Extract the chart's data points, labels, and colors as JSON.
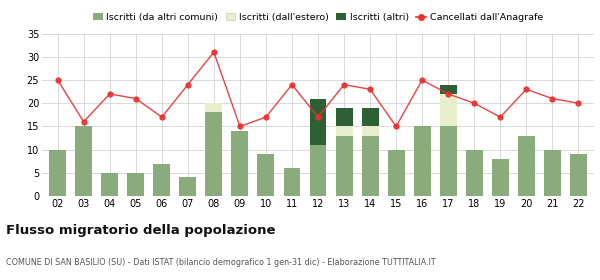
{
  "years": [
    "02",
    "03",
    "04",
    "05",
    "06",
    "07",
    "08",
    "09",
    "10",
    "11",
    "12",
    "13",
    "14",
    "15",
    "16",
    "17",
    "18",
    "19",
    "20",
    "21",
    "22"
  ],
  "iscritti_comuni": [
    10,
    15,
    5,
    5,
    7,
    4,
    18,
    14,
    9,
    6,
    11,
    13,
    13,
    10,
    15,
    15,
    10,
    8,
    13,
    10,
    9
  ],
  "iscritti_estero": [
    0,
    0,
    0,
    0,
    0,
    0,
    2,
    0,
    0,
    0,
    0,
    2,
    2,
    0,
    0,
    7,
    0,
    0,
    0,
    0,
    0
  ],
  "iscritti_altri": [
    0,
    0,
    0,
    0,
    0,
    0,
    0,
    0,
    0,
    0,
    10,
    4,
    4,
    0,
    0,
    2,
    0,
    0,
    0,
    0,
    0
  ],
  "cancellati": [
    25,
    16,
    22,
    21,
    17,
    24,
    31,
    15,
    17,
    24,
    17,
    24,
    23,
    15,
    25,
    22,
    20,
    17,
    23,
    21,
    20
  ],
  "color_comuni": "#8aab7c",
  "color_estero": "#e8eecc",
  "color_altri": "#2d6135",
  "color_cancellati": "#e83030",
  "title": "Flusso migratorio della popolazione",
  "subtitle": "COMUNE DI SAN BASILIO (SU) - Dati ISTAT (bilancio demografico 1 gen-31 dic) - Elaborazione TUTTITALIA.IT",
  "legend_labels": [
    "Iscritti (da altri comuni)",
    "Iscritti (dall'estero)",
    "Iscritti (altri)",
    "Cancellati dall'Anagrafe"
  ],
  "ylim": [
    0,
    35
  ],
  "yticks": [
    0,
    5,
    10,
    15,
    20,
    25,
    30,
    35
  ],
  "background_color": "#ffffff",
  "grid_color": "#cccccc"
}
